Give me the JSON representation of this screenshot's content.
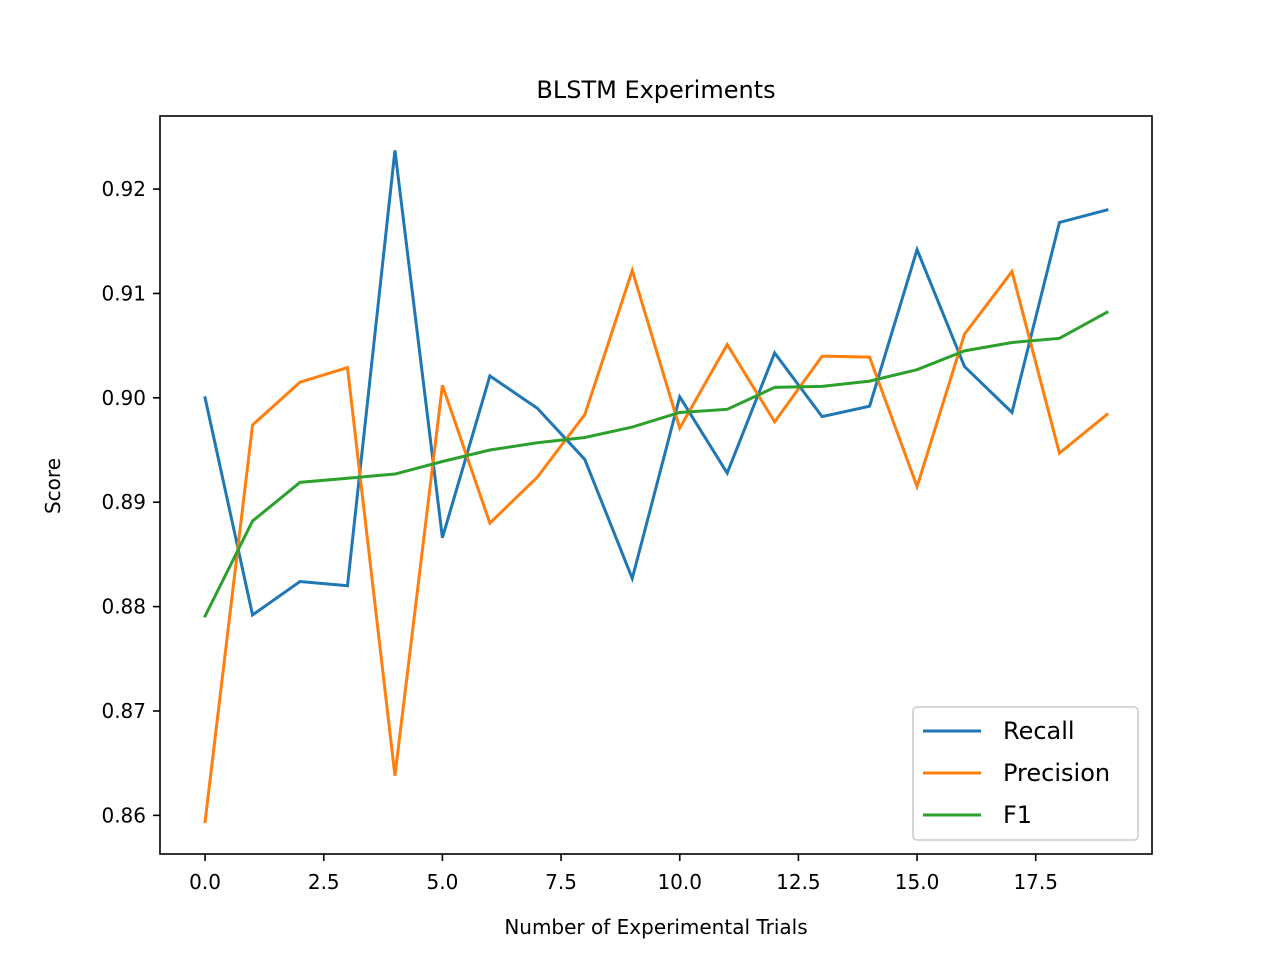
{
  "chart_data": {
    "type": "line",
    "title": "BLSTM Experiments",
    "xlabel": "Number of Experimental Trials",
    "ylabel": "Score",
    "xlim": [
      -0.95,
      19.95
    ],
    "ylim": [
      0.8563,
      0.927
    ],
    "grid": false,
    "legend_position": "lower-right",
    "x": [
      0,
      1,
      2,
      3,
      4,
      5,
      6,
      7,
      8,
      9,
      10,
      11,
      12,
      13,
      14,
      15,
      16,
      17,
      18,
      19
    ],
    "x_ticks": [
      0.0,
      2.5,
      5.0,
      7.5,
      10.0,
      12.5,
      15.0,
      17.5
    ],
    "x_tick_labels": [
      "0.0",
      "2.5",
      "5.0",
      "7.5",
      "10.0",
      "12.5",
      "15.0",
      "17.5"
    ],
    "y_ticks": [
      0.86,
      0.87,
      0.88,
      0.89,
      0.9,
      0.91,
      0.92
    ],
    "y_tick_labels": [
      "0.86",
      "0.87",
      "0.88",
      "0.89",
      "0.90",
      "0.91",
      "0.92"
    ],
    "series": [
      {
        "name": "Recall",
        "color": "#1f77b4",
        "values": [
          0.9,
          0.8792,
          0.8824,
          0.882,
          0.9237,
          0.8866,
          0.9021,
          0.899,
          0.8941,
          0.8827,
          0.9001,
          0.8928,
          0.9043,
          0.8982,
          0.8992,
          0.9142,
          0.903,
          0.8986,
          0.9168,
          0.918
        ]
      },
      {
        "name": "Precision",
        "color": "#ff7f0e",
        "values": [
          0.8594,
          0.8974,
          0.9015,
          0.9029,
          0.8638,
          0.9012,
          0.888,
          0.8924,
          0.8984,
          0.9122,
          0.8971,
          0.9051,
          0.8977,
          0.904,
          0.9039,
          0.8915,
          0.9061,
          0.9121,
          0.8947,
          0.8984
        ]
      },
      {
        "name": "F1",
        "color": "#2ca02c",
        "values": [
          0.8791,
          0.8882,
          0.8919,
          0.8923,
          0.8927,
          0.8939,
          0.895,
          0.8957,
          0.8962,
          0.8972,
          0.8986,
          0.8989,
          0.901,
          0.9011,
          0.9016,
          0.9027,
          0.9045,
          0.9053,
          0.9057,
          0.9082
        ]
      }
    ]
  }
}
